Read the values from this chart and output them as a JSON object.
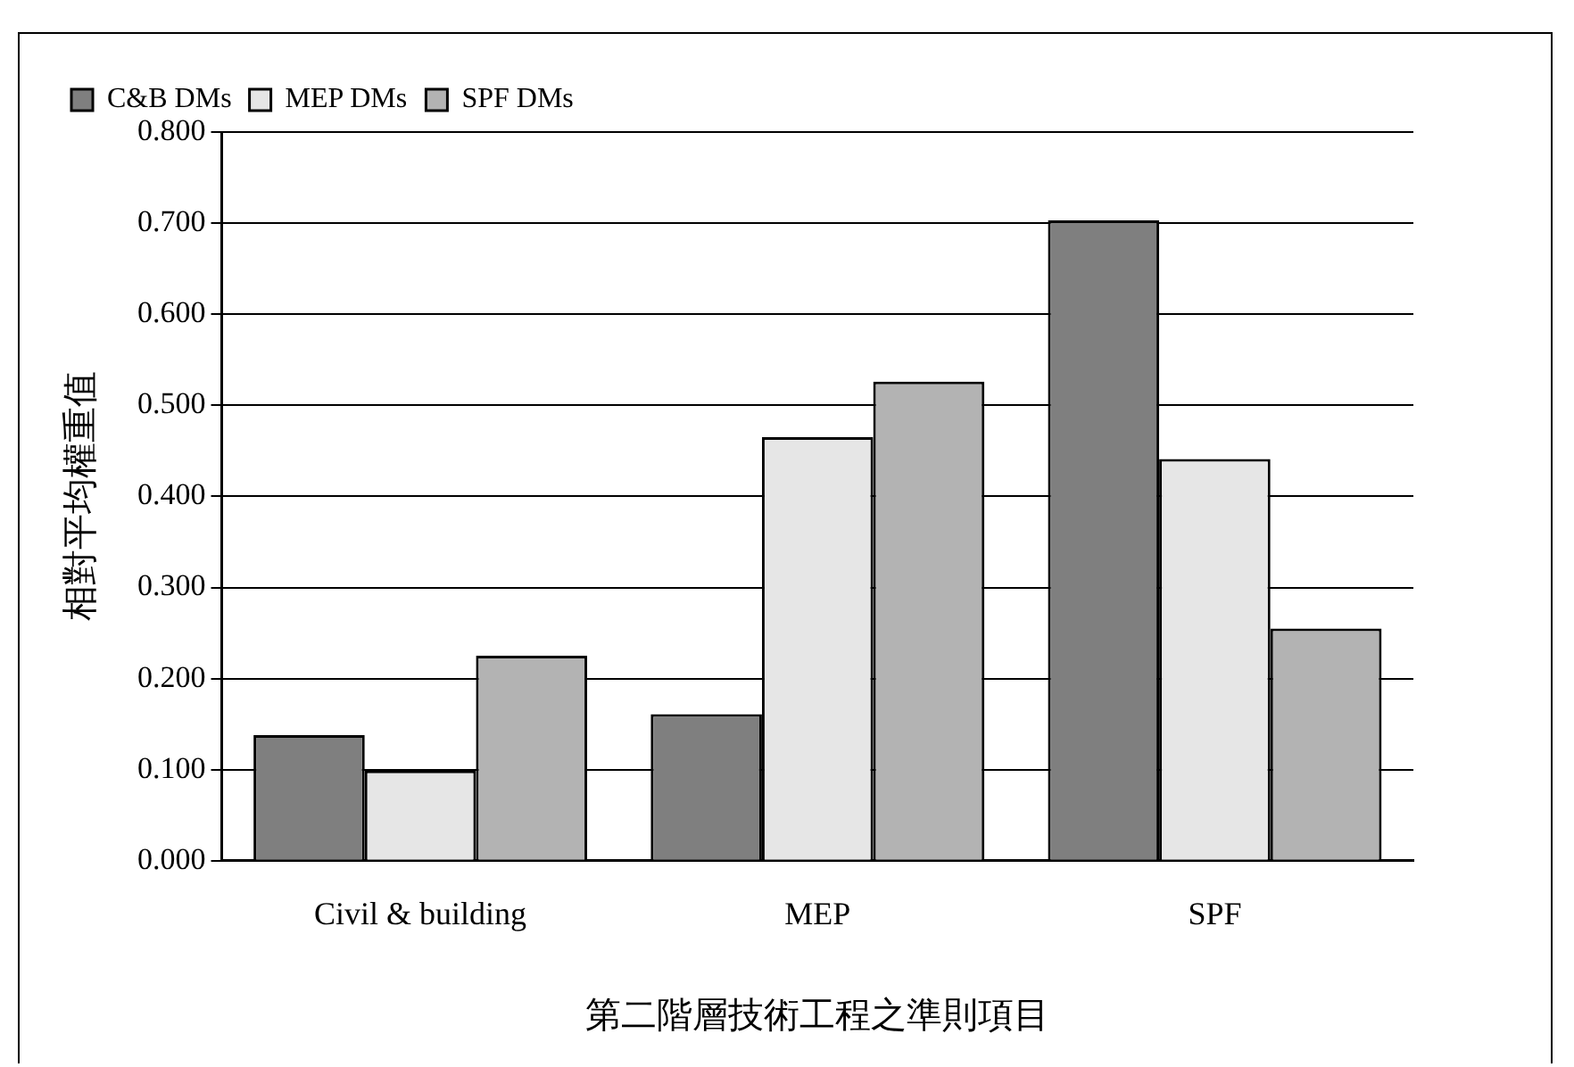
{
  "chart_data": {
    "type": "bar",
    "xlabel": "第二階層技術工程之準則項目",
    "ylabel": "相對平均權重值",
    "categories": [
      "Civil & building",
      "MEP",
      "SPF"
    ],
    "series": [
      {
        "name": "C&B DMs",
        "color": "#7f7f7f",
        "values": [
          0.138,
          0.161,
          0.703
        ]
      },
      {
        "name": "MEP DMs",
        "color": "#e6e6e6",
        "values": [
          0.099,
          0.465,
          0.441
        ]
      },
      {
        "name": "SPF DMs",
        "color": "#b3b3b3",
        "values": [
          0.225,
          0.526,
          0.255
        ]
      }
    ],
    "ylim": [
      0,
      0.8
    ],
    "yticks": [
      {
        "value": 0,
        "label": "0.000"
      },
      {
        "value": 0.1,
        "label": "0.100"
      },
      {
        "value": 0.2,
        "label": "0.200"
      },
      {
        "value": 0.3,
        "label": "0.300"
      },
      {
        "value": 0.4,
        "label": "0.400"
      },
      {
        "value": 0.5,
        "label": "0.500"
      },
      {
        "value": 0.6,
        "label": "0.600"
      },
      {
        "value": 0.7,
        "label": "0.700"
      },
      {
        "value": 0.8,
        "label": "0.800"
      }
    ],
    "grid": "y",
    "legend": "top left"
  }
}
